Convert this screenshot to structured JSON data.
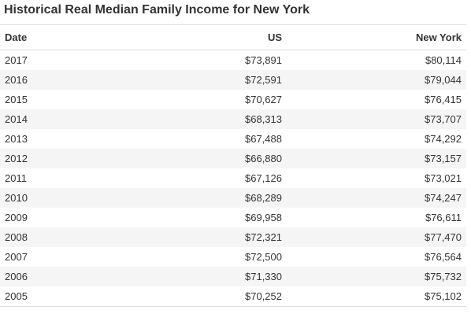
{
  "title": "Historical Real Median Family Income for New York",
  "table": {
    "headers": [
      "Date",
      "US",
      "New York"
    ],
    "rows": [
      [
        "2017",
        "$73,891",
        "$80,114"
      ],
      [
        "2016",
        "$72,591",
        "$79,044"
      ],
      [
        "2015",
        "$70,627",
        "$76,415"
      ],
      [
        "2014",
        "$68,313",
        "$73,707"
      ],
      [
        "2013",
        "$67,488",
        "$74,292"
      ],
      [
        "2012",
        "$66,880",
        "$73,157"
      ],
      [
        "2011",
        "$67,126",
        "$73,021"
      ],
      [
        "2010",
        "$68,289",
        "$74,247"
      ],
      [
        "2009",
        "$69,958",
        "$76,611"
      ],
      [
        "2008",
        "$72,321",
        "$77,470"
      ],
      [
        "2007",
        "$72,500",
        "$76,564"
      ],
      [
        "2006",
        "$71,330",
        "$75,732"
      ],
      [
        "2005",
        "$70,252",
        "$75,102"
      ]
    ]
  }
}
